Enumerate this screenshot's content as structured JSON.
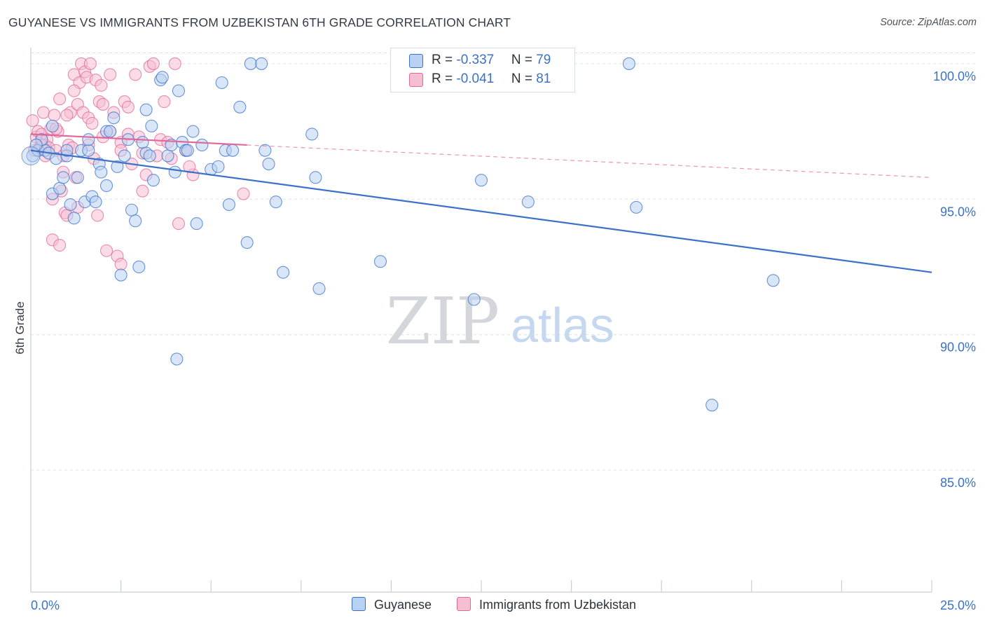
{
  "title": "GUYANESE VS IMMIGRANTS FROM UZBEKISTAN 6TH GRADE CORRELATION CHART",
  "source": "Source: ZipAtlas.com",
  "watermark": {
    "zip": "ZIP",
    "atlas": "atlas"
  },
  "colors": {
    "blue": "#3b72c8",
    "blue_fill": "#b9d1f2",
    "pink": "#e0699a",
    "pink_fill": "#f6bed2",
    "grid": "#dde1e6",
    "tick_label": "#3b72c8"
  },
  "legend": {
    "series1": {
      "r_label": "R = ",
      "r_value": "-0.337",
      "n_label": "N = ",
      "n_value": "79"
    },
    "series2": {
      "r_label": "R = ",
      "r_value": "-0.041",
      "n_label": "N = ",
      "n_value": "81"
    }
  },
  "bottom_legend": [
    "Guyanese",
    "Immigrants from Uzbekistan"
  ],
  "chart_data": {
    "type": "scatter",
    "title": "GUYANESE VS IMMIGRANTS FROM UZBEKISTAN 6TH GRADE CORRELATION CHART",
    "xlabel": "",
    "ylabel": "6th Grade",
    "xlim": [
      0,
      25
    ],
    "ylim": [
      80.5,
      100.8
    ],
    "x_tick_labels": [
      "0.0%",
      "25.0%"
    ],
    "y_ticks": [
      100,
      95,
      90,
      85
    ],
    "y_tick_labels": [
      "100.0%",
      "95.0%",
      "90.0%",
      "85.0%"
    ],
    "grid": true,
    "legend_position": "top-center",
    "series": [
      {
        "name": "Guyanese",
        "r": -0.337,
        "n": 79,
        "trend": {
          "x": [
            0,
            25
          ],
          "y": [
            96.8,
            92.3
          ],
          "style": "solid"
        },
        "points": [
          [
            0.05,
            96.6
          ],
          [
            0.2,
            96.8
          ],
          [
            0.4,
            96.8
          ],
          [
            0.5,
            96.7
          ],
          [
            0.6,
            97.7
          ],
          [
            0.6,
            95.2
          ],
          [
            0.7,
            96.5
          ],
          [
            0.8,
            95.4
          ],
          [
            0.9,
            95.8
          ],
          [
            1.0,
            96.6
          ],
          [
            1.1,
            94.8
          ],
          [
            1.2,
            94.3
          ],
          [
            1.3,
            95.8
          ],
          [
            1.4,
            96.8
          ],
          [
            1.5,
            94.9
          ],
          [
            1.6,
            96.8
          ],
          [
            1.6,
            97.2
          ],
          [
            1.7,
            95.1
          ],
          [
            1.8,
            94.9
          ],
          [
            1.9,
            96.3
          ],
          [
            1.95,
            96.0
          ],
          [
            2.1,
            95.5
          ],
          [
            2.1,
            97.5
          ],
          [
            2.2,
            97.5
          ],
          [
            2.3,
            98.0
          ],
          [
            2.4,
            96.2
          ],
          [
            2.5,
            92.2
          ],
          [
            2.6,
            96.6
          ],
          [
            2.7,
            97.2
          ],
          [
            2.8,
            94.6
          ],
          [
            2.9,
            94.2
          ],
          [
            3.0,
            92.5
          ],
          [
            3.1,
            97.1
          ],
          [
            3.2,
            96.7
          ],
          [
            3.2,
            98.3
          ],
          [
            3.3,
            96.6
          ],
          [
            3.35,
            97.7
          ],
          [
            3.4,
            95.7
          ],
          [
            3.6,
            99.4
          ],
          [
            3.65,
            99.5
          ],
          [
            3.8,
            96.6
          ],
          [
            3.9,
            97.0
          ],
          [
            4.0,
            96.0
          ],
          [
            4.1,
            99.0
          ],
          [
            4.2,
            97.1
          ],
          [
            4.3,
            96.8
          ],
          [
            4.35,
            96.8
          ],
          [
            4.5,
            97.5
          ],
          [
            4.6,
            94.1
          ],
          [
            4.75,
            97.0
          ],
          [
            5.0,
            96.1
          ],
          [
            5.2,
            96.2
          ],
          [
            5.3,
            99.3
          ],
          [
            5.4,
            96.8
          ],
          [
            5.5,
            94.8
          ],
          [
            5.6,
            96.8
          ],
          [
            5.8,
            98.4
          ],
          [
            6.0,
            93.4
          ],
          [
            6.1,
            100.0
          ],
          [
            6.4,
            100.0
          ],
          [
            6.5,
            96.8
          ],
          [
            6.6,
            96.3
          ],
          [
            6.8,
            94.9
          ],
          [
            7.0,
            92.3
          ],
          [
            7.8,
            97.4
          ],
          [
            7.9,
            95.8
          ],
          [
            8.0,
            91.7
          ],
          [
            9.7,
            92.7
          ],
          [
            12.3,
            91.3
          ],
          [
            12.5,
            95.7
          ],
          [
            13.8,
            94.9
          ],
          [
            16.6,
            100.0
          ],
          [
            16.8,
            94.7
          ],
          [
            18.9,
            87.4
          ],
          [
            20.6,
            92.0
          ],
          [
            4.05,
            89.1
          ],
          [
            1.0,
            96.8
          ],
          [
            0.3,
            97.2
          ],
          [
            0.15,
            97.0
          ]
        ]
      },
      {
        "name": "Immigrants from Uzbekistan",
        "r": -0.041,
        "n": 81,
        "trend": {
          "x": [
            0,
            6.0
          ],
          "y": [
            97.4,
            97.0
          ],
          "style": "solid"
        },
        "trend_extension": {
          "x": [
            6.0,
            25
          ],
          "y": [
            97.0,
            95.8
          ],
          "style": "dashed"
        },
        "points": [
          [
            0.05,
            97.9
          ],
          [
            0.1,
            96.8
          ],
          [
            0.15,
            97.3
          ],
          [
            0.2,
            97.5
          ],
          [
            0.25,
            96.9
          ],
          [
            0.3,
            97.4
          ],
          [
            0.35,
            98.2
          ],
          [
            0.4,
            97.0
          ],
          [
            0.45,
            97.2
          ],
          [
            0.5,
            96.9
          ],
          [
            0.55,
            97.6
          ],
          [
            0.6,
            95.0
          ],
          [
            0.65,
            98.1
          ],
          [
            0.7,
            96.8
          ],
          [
            0.75,
            97.5
          ],
          [
            0.8,
            98.7
          ],
          [
            0.85,
            95.3
          ],
          [
            0.9,
            96.6
          ],
          [
            0.95,
            94.5
          ],
          [
            1.0,
            94.4
          ],
          [
            1.05,
            97.0
          ],
          [
            1.1,
            98.2
          ],
          [
            1.15,
            96.9
          ],
          [
            1.2,
            99.6
          ],
          [
            1.25,
            95.8
          ],
          [
            1.3,
            98.5
          ],
          [
            1.35,
            99.3
          ],
          [
            1.4,
            100.0
          ],
          [
            1.45,
            98.2
          ],
          [
            1.5,
            99.7
          ],
          [
            1.55,
            99.5
          ],
          [
            1.6,
            98.0
          ],
          [
            1.65,
            100.0
          ],
          [
            1.7,
            97.8
          ],
          [
            1.75,
            96.5
          ],
          [
            1.8,
            99.4
          ],
          [
            1.85,
            94.4
          ],
          [
            1.9,
            98.6
          ],
          [
            1.95,
            99.2
          ],
          [
            2.0,
            98.5
          ],
          [
            2.1,
            93.1
          ],
          [
            2.2,
            97.5
          ],
          [
            2.3,
            98.2
          ],
          [
            2.4,
            92.9
          ],
          [
            2.5,
            97.1
          ],
          [
            2.6,
            98.6
          ],
          [
            2.7,
            97.4
          ],
          [
            2.8,
            96.3
          ],
          [
            2.9,
            99.6
          ],
          [
            3.0,
            97.3
          ],
          [
            3.1,
            95.3
          ],
          [
            3.2,
            95.9
          ],
          [
            3.3,
            99.9
          ],
          [
            3.4,
            100.0
          ],
          [
            3.5,
            96.6
          ],
          [
            3.6,
            97.2
          ],
          [
            3.7,
            98.6
          ],
          [
            3.8,
            97.1
          ],
          [
            3.9,
            96.5
          ],
          [
            4.0,
            100.0
          ],
          [
            4.1,
            94.1
          ],
          [
            4.3,
            96.8
          ],
          [
            4.5,
            95.9
          ],
          [
            5.9,
            95.2
          ],
          [
            0.6,
            93.5
          ],
          [
            0.9,
            96.0
          ],
          [
            1.3,
            94.7
          ],
          [
            2.5,
            92.6
          ],
          [
            0.3,
            97.0
          ],
          [
            0.7,
            97.6
          ],
          [
            1.0,
            98.1
          ],
          [
            1.6,
            97.0
          ],
          [
            2.0,
            97.3
          ],
          [
            2.5,
            96.8
          ],
          [
            2.7,
            98.4
          ],
          [
            3.1,
            96.7
          ],
          [
            1.2,
            99.0
          ],
          [
            0.4,
            96.6
          ],
          [
            0.8,
            93.3
          ],
          [
            4.4,
            96.2
          ],
          [
            2.2,
            99.6
          ]
        ]
      }
    ]
  }
}
